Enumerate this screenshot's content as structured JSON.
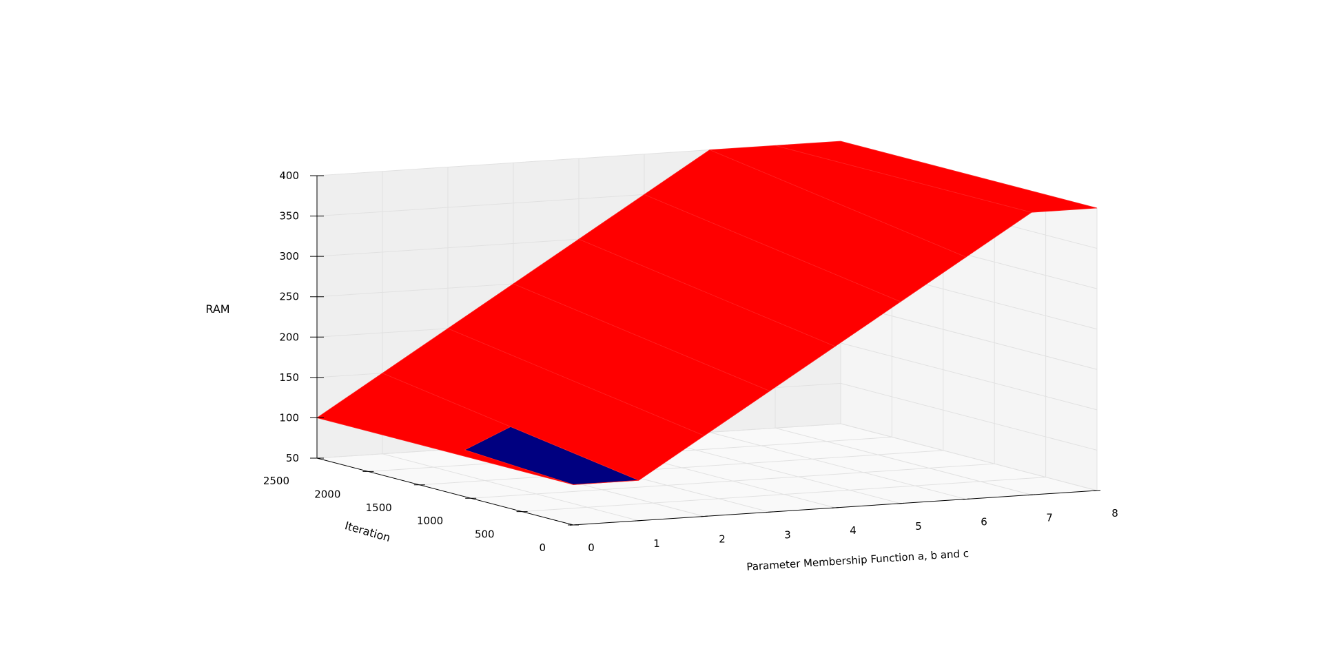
{
  "chart_data": {
    "type": "surface3d",
    "title": "",
    "xlabel": "Parameter Membership Function a, b and c",
    "ylabel": "Iteration",
    "zlabel": "RAM",
    "x_ticks": [
      "0",
      "1",
      "2",
      "3",
      "4",
      "5",
      "6",
      "7",
      "8"
    ],
    "y_ticks": [
      "0",
      "500",
      "1000",
      "1500",
      "2000",
      "2500"
    ],
    "z_ticks": [
      "50",
      "100",
      "150",
      "200",
      "250",
      "300",
      "350",
      "400"
    ],
    "xlim": [
      0,
      8
    ],
    "ylim": [
      0,
      2500
    ],
    "zlim": [
      50,
      400
    ],
    "grid": true,
    "legend": "none",
    "colors": {
      "surface": "#ff0000",
      "underside": "#000080",
      "edge": "#ff2020"
    },
    "series": [
      {
        "x": [
          0,
          1,
          2,
          3,
          4,
          5,
          6,
          7,
          8
        ],
        "values_by_iteration": {
          "0": [
            100,
            100,
            150,
            200,
            250,
            300,
            350,
            400,
            400
          ],
          "2500": [
            100,
            150,
            200,
            250,
            300,
            350,
            400,
            400,
            400
          ]
        }
      }
    ]
  }
}
